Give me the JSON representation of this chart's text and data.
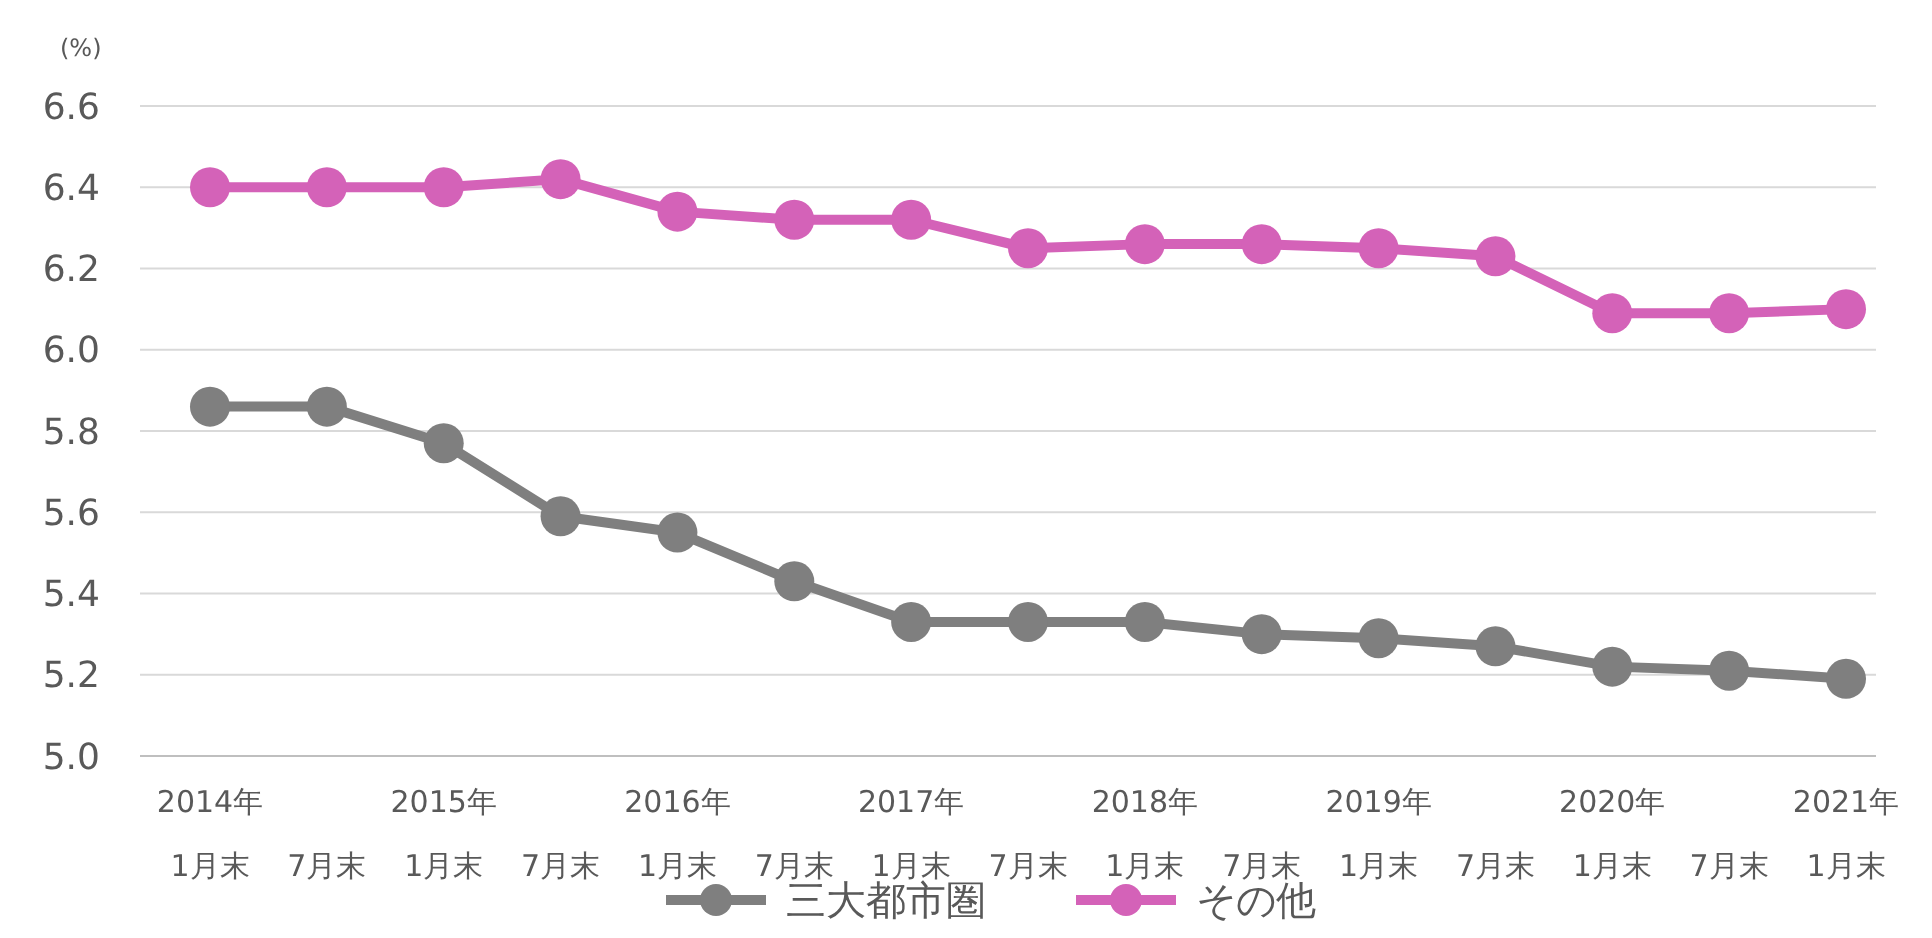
{
  "chart_data": {
    "type": "line",
    "ylabel": "(%)",
    "categories": [
      "2014年\n1月末",
      "7月末",
      "2015年\n1月末",
      "7月末",
      "2016年\n1月末",
      "7月末",
      "2017年\n1月末",
      "7月末",
      "2018年\n1月末",
      "7月末",
      "2019年\n1月末",
      "7月末",
      "2020年\n1月末",
      "7月末",
      "2021年\n1月末"
    ],
    "series": [
      {
        "name": "三大都市圏",
        "color": "#7f7f7f",
        "values": [
          5.86,
          5.86,
          5.77,
          5.59,
          5.55,
          5.43,
          5.33,
          5.33,
          5.33,
          5.3,
          5.29,
          5.27,
          5.22,
          5.21,
          5.19
        ]
      },
      {
        "name": "その他",
        "color": "#d462b8",
        "values": [
          6.4,
          6.4,
          6.4,
          6.42,
          6.34,
          6.32,
          6.32,
          6.25,
          6.26,
          6.26,
          6.25,
          6.23,
          6.09,
          6.09,
          6.1
        ]
      }
    ],
    "ylim": [
      5.0,
      6.6
    ],
    "yticks": [
      {
        "value": 5.0,
        "label": "5.0"
      },
      {
        "value": 5.2,
        "label": "5.2"
      },
      {
        "value": 5.4,
        "label": "5.4"
      },
      {
        "value": 5.6,
        "label": "5.6"
      },
      {
        "value": 5.8,
        "label": "5.8"
      },
      {
        "value": 6.0,
        "label": "6.0"
      },
      {
        "value": 6.2,
        "label": "6.2"
      },
      {
        "value": 6.4,
        "label": "6.4"
      },
      {
        "value": 6.6,
        "label": "6.6"
      }
    ],
    "grid": "y",
    "legend": "bottom",
    "marker": "circle",
    "line_style": "solid"
  }
}
